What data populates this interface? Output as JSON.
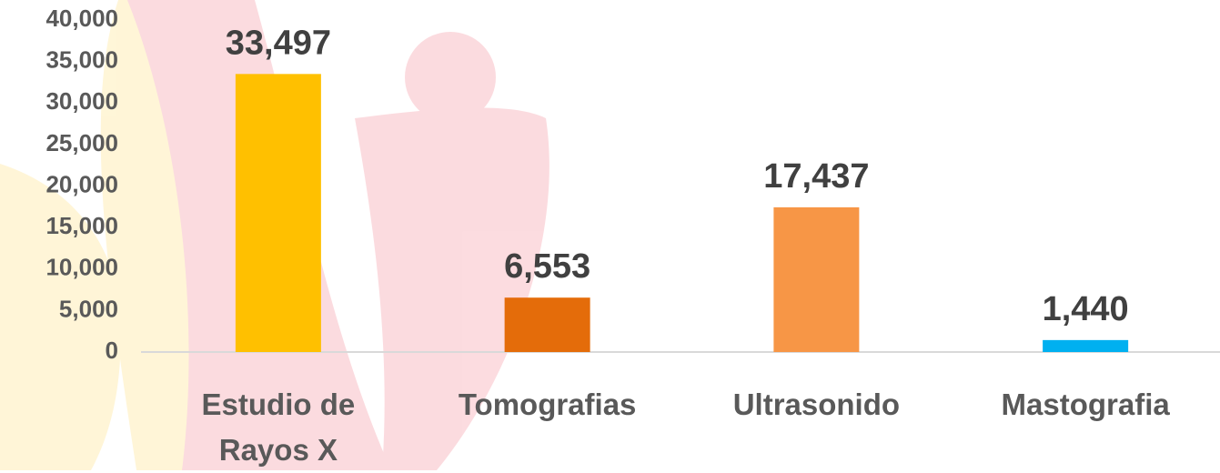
{
  "chart_data": {
    "type": "bar",
    "categories": [
      "Estudio de Rayos X",
      "Tomografias",
      "Ultrasonido",
      "Mastografia"
    ],
    "values": [
      33497,
      6553,
      17437,
      1440
    ],
    "value_labels": [
      "33,497",
      "6,553",
      "17,437",
      "1,440"
    ],
    "colors": [
      "#ffc000",
      "#e46c0a",
      "#f79646",
      "#00b0f0"
    ],
    "ylim": [
      0,
      40000
    ],
    "yticks": [
      0,
      {
        "value": 5000,
        "label": "5,000"
      },
      {
        "value": 10000,
        "label": "10,000"
      },
      {
        "value": 15000,
        "label": "15,000"
      },
      {
        "value": 20000,
        "label": "20,000"
      },
      {
        "value": 25000,
        "label": "25,000"
      },
      {
        "value": 30000,
        "label": "30,000"
      },
      {
        "value": 35000,
        "label": "35,000"
      },
      {
        "value": 40000,
        "label": "40,000"
      }
    ],
    "grid": false
  }
}
